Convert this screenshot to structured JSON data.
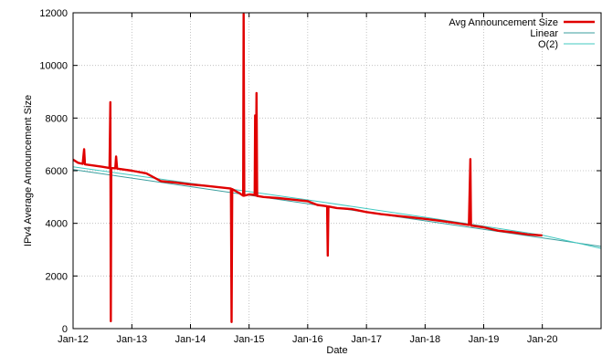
{
  "chart_data": {
    "type": "line",
    "xlabel": "Date",
    "ylabel": "IPv4 Average Announcement Size",
    "xlim": [
      "2012-01-01",
      "2021-01-01"
    ],
    "ylim": [
      0,
      12000
    ],
    "grid": true,
    "legend_position": "top-right",
    "x_ticks": [
      {
        "date": "2012-01-01",
        "label": "Jan-12"
      },
      {
        "date": "2013-01-01",
        "label": "Jan-13"
      },
      {
        "date": "2014-01-01",
        "label": "Jan-14"
      },
      {
        "date": "2015-01-01",
        "label": "Jan-15"
      },
      {
        "date": "2016-01-01",
        "label": "Jan-16"
      },
      {
        "date": "2017-01-01",
        "label": "Jan-17"
      },
      {
        "date": "2018-01-01",
        "label": "Jan-18"
      },
      {
        "date": "2019-01-01",
        "label": "Jan-19"
      },
      {
        "date": "2020-01-01",
        "label": "Jan-20"
      }
    ],
    "y_ticks": [
      0,
      2000,
      4000,
      6000,
      8000,
      10000,
      12000
    ],
    "series": [
      {
        "name": "Avg Announcement Size",
        "color": "#e00000",
        "points": [
          [
            "2012-01-01",
            6420
          ],
          [
            "2012-02-01",
            6300
          ],
          [
            "2012-03-01",
            6260
          ],
          [
            "2012-03-10",
            6820
          ],
          [
            "2012-03-15",
            6240
          ],
          [
            "2012-05-01",
            6200
          ],
          [
            "2012-07-01",
            6150
          ],
          [
            "2012-08-15",
            6100
          ],
          [
            "2012-08-20",
            8600
          ],
          [
            "2012-08-23",
            280
          ],
          [
            "2012-08-26",
            6100
          ],
          [
            "2012-09-20",
            6090
          ],
          [
            "2012-09-25",
            6540
          ],
          [
            "2012-10-01",
            6080
          ],
          [
            "2013-01-01",
            6000
          ],
          [
            "2013-04-01",
            5900
          ],
          [
            "2013-07-01",
            5600
          ],
          [
            "2013-10-01",
            5550
          ],
          [
            "2014-01-01",
            5480
          ],
          [
            "2014-04-01",
            5430
          ],
          [
            "2014-07-01",
            5370
          ],
          [
            "2014-09-10",
            5320
          ],
          [
            "2014-09-14",
            250
          ],
          [
            "2014-09-18",
            5300
          ],
          [
            "2014-11-01",
            5150
          ],
          [
            "2014-11-25",
            5050
          ],
          [
            "2014-11-28",
            11950
          ],
          [
            "2014-12-02",
            5050
          ],
          [
            "2015-01-01",
            5100
          ],
          [
            "2015-02-05",
            5080
          ],
          [
            "2015-02-08",
            8100
          ],
          [
            "2015-02-12",
            5060
          ],
          [
            "2015-02-16",
            8950
          ],
          [
            "2015-02-20",
            5040
          ],
          [
            "2015-04-01",
            5000
          ],
          [
            "2015-07-01",
            4960
          ],
          [
            "2015-10-01",
            4900
          ],
          [
            "2016-01-01",
            4840
          ],
          [
            "2016-03-01",
            4700
          ],
          [
            "2016-05-01",
            4650
          ],
          [
            "2016-05-05",
            2770
          ],
          [
            "2016-05-09",
            4640
          ],
          [
            "2016-07-01",
            4580
          ],
          [
            "2016-10-01",
            4540
          ],
          [
            "2017-01-01",
            4430
          ],
          [
            "2017-04-01",
            4350
          ],
          [
            "2017-07-01",
            4290
          ],
          [
            "2017-10-01",
            4230
          ],
          [
            "2018-01-01",
            4170
          ],
          [
            "2018-04-01",
            4100
          ],
          [
            "2018-07-01",
            4020
          ],
          [
            "2018-10-01",
            3940
          ],
          [
            "2018-10-10",
            6440
          ],
          [
            "2018-10-14",
            3920
          ],
          [
            "2019-01-01",
            3850
          ],
          [
            "2019-04-01",
            3720
          ],
          [
            "2019-07-01",
            3660
          ],
          [
            "2019-10-01",
            3580
          ],
          [
            "2020-01-01",
            3540
          ]
        ]
      },
      {
        "name": "Linear",
        "color": "#3a9e9e",
        "points": [
          [
            "2012-01-01",
            6040
          ],
          [
            "2021-01-01",
            3120
          ]
        ]
      },
      {
        "name": "O(2)",
        "color": "#40c8c0",
        "points": [
          [
            "2012-01-01",
            6150
          ],
          [
            "2014-01-01",
            5520
          ],
          [
            "2016-01-01",
            4890
          ],
          [
            "2018-01-01",
            4230
          ],
          [
            "2020-01-01",
            3550
          ],
          [
            "2021-01-01",
            3050
          ]
        ]
      }
    ]
  }
}
